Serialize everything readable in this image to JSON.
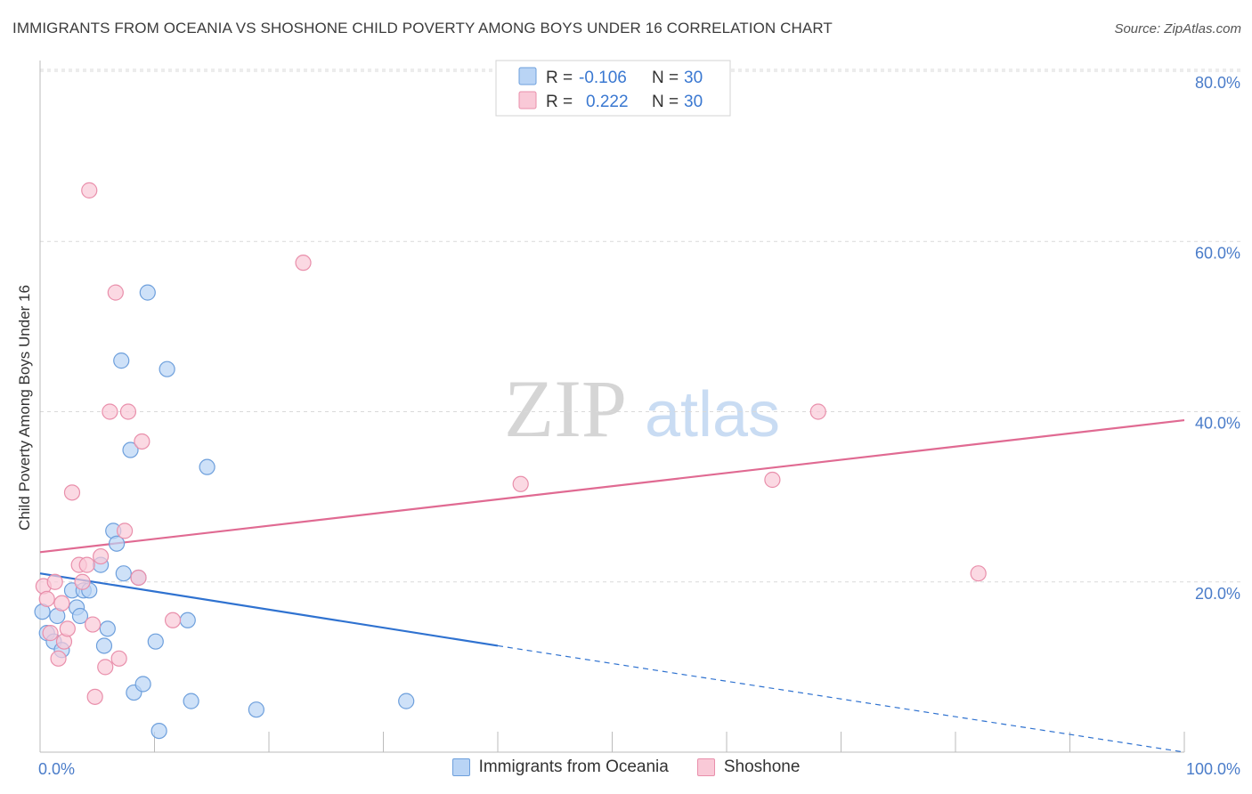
{
  "title": "IMMIGRANTS FROM OCEANIA VS SHOSHONE CHILD POVERTY AMONG BOYS UNDER 16 CORRELATION CHART",
  "source": "Source: ZipAtlas.com",
  "watermark": {
    "zip": "ZIP",
    "atlas": "atlas"
  },
  "colors": {
    "blue_fill": "#b9d4f5",
    "blue_stroke": "#6d9fdc",
    "blue_line": "#2f72d0",
    "pink_fill": "#f9c9d7",
    "pink_stroke": "#e98fab",
    "pink_line": "#e06a92",
    "tick_text": "#4a7cc9",
    "grid": "#d9d9d9"
  },
  "stats": [
    {
      "series": "Immigrants from Oceania",
      "r_label": "R =",
      "r_value": "-0.106",
      "n_label": "N =",
      "n_value": "30"
    },
    {
      "series": "Shoshone",
      "r_label": "R =",
      "r_value": "0.222",
      "n_label": "N =",
      "n_value": "30"
    }
  ],
  "legend": [
    {
      "label": "Immigrants from Oceania",
      "color": "blue"
    },
    {
      "label": "Shoshone",
      "color": "pink"
    }
  ],
  "chart_data": {
    "type": "scatter",
    "title": "IMMIGRANTS FROM OCEANIA VS SHOSHONE CHILD POVERTY AMONG BOYS UNDER 16 CORRELATION CHART",
    "xlabel": "",
    "ylabel": "Child Poverty Among Boys Under 16",
    "xlim": [
      0,
      100
    ],
    "ylim": [
      0,
      80
    ],
    "x_tick_labels": [
      {
        "value": 0,
        "label": "0.0%"
      },
      {
        "value": 100,
        "label": "100.0%"
      }
    ],
    "x_minor_ticks": [
      10,
      20,
      30,
      40,
      50,
      60,
      70,
      80,
      90,
      100
    ],
    "y_ticks": [
      {
        "value": 20,
        "label": "20.0%"
      },
      {
        "value": 40,
        "label": "40.0%"
      },
      {
        "value": 60,
        "label": "60.0%"
      },
      {
        "value": 80,
        "label": "80.0%"
      }
    ],
    "series": [
      {
        "name": "Immigrants from Oceania",
        "color": "blue",
        "points": [
          [
            0.2,
            16.5
          ],
          [
            0.6,
            14.0
          ],
          [
            1.2,
            13.0
          ],
          [
            1.5,
            16.0
          ],
          [
            1.9,
            12.0
          ],
          [
            2.8,
            19.0
          ],
          [
            3.2,
            17.0
          ],
          [
            3.5,
            16.0
          ],
          [
            3.8,
            19.0
          ],
          [
            4.3,
            19.0
          ],
          [
            5.3,
            22.0
          ],
          [
            5.6,
            12.5
          ],
          [
            5.9,
            14.5
          ],
          [
            6.4,
            26.0
          ],
          [
            6.7,
            24.5
          ],
          [
            7.1,
            46.0
          ],
          [
            7.3,
            21.0
          ],
          [
            7.9,
            35.5
          ],
          [
            8.2,
            7.0
          ],
          [
            8.6,
            20.5
          ],
          [
            9.0,
            8.0
          ],
          [
            9.4,
            54.0
          ],
          [
            10.1,
            13.0
          ],
          [
            10.4,
            2.5
          ],
          [
            11.1,
            45.0
          ],
          [
            12.9,
            15.5
          ],
          [
            13.2,
            6.0
          ],
          [
            14.6,
            33.5
          ],
          [
            18.9,
            5.0
          ],
          [
            32.0,
            6.0
          ]
        ],
        "trend": {
          "x": [
            0,
            40
          ],
          "y": [
            21.0,
            12.5
          ],
          "dashed_x": [
            40,
            100
          ],
          "dashed_y": [
            12.5,
            0.0
          ]
        }
      },
      {
        "name": "Shoshone",
        "color": "pink",
        "points": [
          [
            0.3,
            19.5
          ],
          [
            0.6,
            18.0
          ],
          [
            0.9,
            14.0
          ],
          [
            1.3,
            20.0
          ],
          [
            1.6,
            11.0
          ],
          [
            1.9,
            17.5
          ],
          [
            2.1,
            13.0
          ],
          [
            2.4,
            14.5
          ],
          [
            2.8,
            30.5
          ],
          [
            3.4,
            22.0
          ],
          [
            3.7,
            20.0
          ],
          [
            4.1,
            22.0
          ],
          [
            4.3,
            66.0
          ],
          [
            4.6,
            15.0
          ],
          [
            4.8,
            6.5
          ],
          [
            5.3,
            23.0
          ],
          [
            5.7,
            10.0
          ],
          [
            6.1,
            40.0
          ],
          [
            6.6,
            54.0
          ],
          [
            6.9,
            11.0
          ],
          [
            7.4,
            26.0
          ],
          [
            7.7,
            40.0
          ],
          [
            8.6,
            20.5
          ],
          [
            8.9,
            36.5
          ],
          [
            11.6,
            15.5
          ],
          [
            23.0,
            57.5
          ],
          [
            42.0,
            31.5
          ],
          [
            64.0,
            32.0
          ],
          [
            68.0,
            40.0
          ],
          [
            82.0,
            21.0
          ]
        ],
        "trend": {
          "x": [
            0,
            100
          ],
          "y": [
            23.5,
            39.0
          ]
        }
      }
    ]
  }
}
